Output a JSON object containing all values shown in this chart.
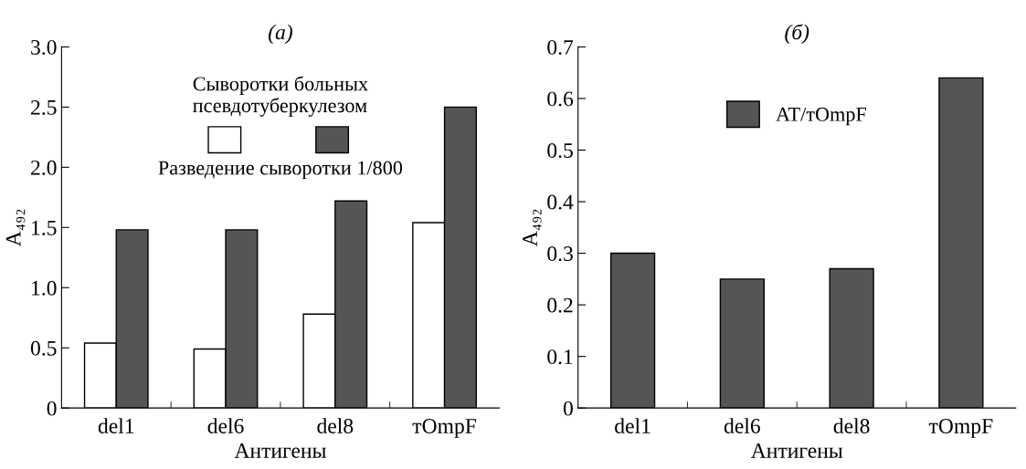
{
  "chart_data": [
    {
      "type": "bar",
      "title": "(а)",
      "xlabel": "Антигены",
      "ylabel": "A₄₉₂",
      "categories": [
        "del1",
        "del6",
        "del8",
        "тOmpF"
      ],
      "series": [
        {
          "color": "#ffffff",
          "values": [
            0.54,
            0.49,
            0.78,
            1.54
          ]
        },
        {
          "color": "#555555",
          "values": [
            1.48,
            1.48,
            1.72,
            2.5
          ]
        }
      ],
      "legend": "top",
      "legend_title": "Сыворотки больных\nпсевдотуберкулезом",
      "annotations": [
        "Разведение сыворотки 1/800"
      ],
      "ylim": [
        0,
        3.0
      ],
      "yticks": [
        0,
        0.5,
        {
          "value": 1,
          "label": "1.0"
        },
        1.5,
        {
          "value": 2,
          "label": "2.0"
        },
        2.5,
        {
          "value": 3,
          "label": "3.0"
        }
      ],
      "grid": false
    },
    {
      "type": "bar",
      "title": "(б)",
      "xlabel": "Антигены",
      "ylabel": "A₄₉₂",
      "categories": [
        "del1",
        "del6",
        "del8",
        "тOmpF"
      ],
      "series": [
        {
          "name": "AT/тOmpF",
          "color": "#555555",
          "values": [
            0.3,
            0.25,
            0.27,
            0.64
          ]
        }
      ],
      "legend": "top",
      "ylim": [
        0,
        0.7
      ],
      "yticks": [
        0,
        0.1,
        0.2,
        0.3,
        0.4,
        0.5,
        0.6,
        0.7
      ],
      "grid": false
    }
  ]
}
